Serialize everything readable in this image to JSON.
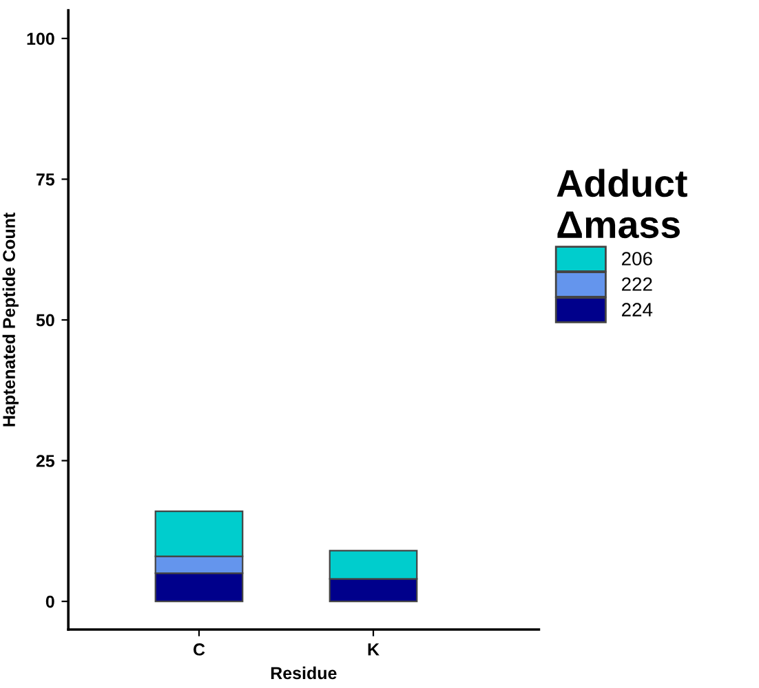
{
  "chart_data": {
    "type": "bar",
    "stacked": true,
    "xlabel": "Residue",
    "ylabel": "Haptenated Peptide Count",
    "legend_title": "Adduct\nΔmass",
    "categories": [
      "C",
      "K"
    ],
    "series": [
      {
        "name": "224",
        "color": "#00008b",
        "values": [
          5,
          4
        ]
      },
      {
        "name": "222",
        "color": "#6495ed",
        "values": [
          3,
          0
        ]
      },
      {
        "name": "206",
        "color": "#00cdcd",
        "values": [
          8,
          5
        ]
      }
    ],
    "ylim": [
      -5,
      105
    ],
    "yticks": [
      0,
      25,
      50,
      75,
      100
    ],
    "grid": false,
    "legend": "right"
  }
}
